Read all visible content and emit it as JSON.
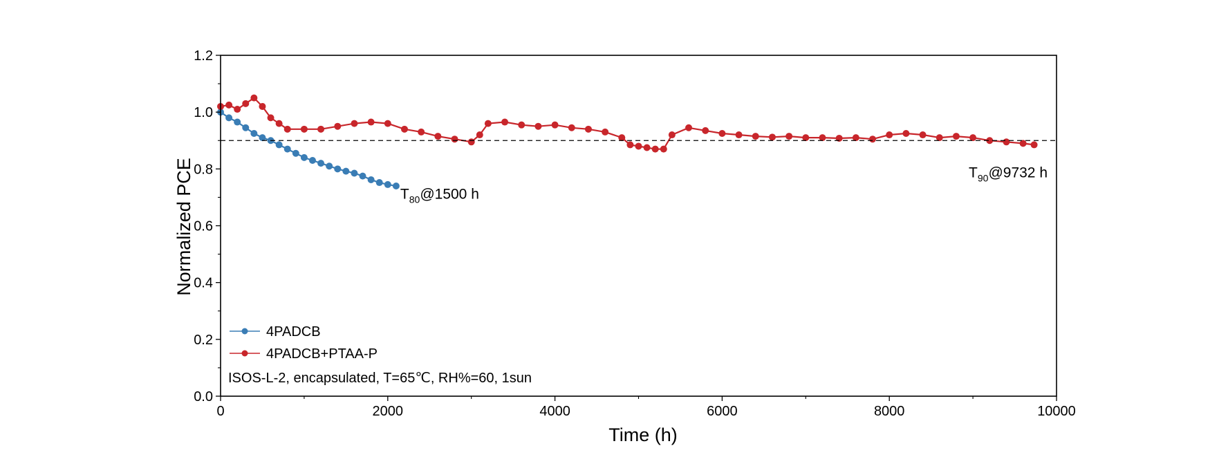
{
  "chart_data": {
    "type": "scatter",
    "title": "",
    "xlabel": "Time (h)",
    "ylabel": "Normalized PCE",
    "xlim": [
      0,
      10000
    ],
    "ylim": [
      0.0,
      1.2
    ],
    "xticks": [
      0,
      2000,
      4000,
      6000,
      8000,
      10000
    ],
    "yticks": [
      0.0,
      0.2,
      0.4,
      0.6,
      0.8,
      1.0,
      1.2
    ],
    "xtick_labels": [
      "0",
      "2000",
      "4000",
      "6000",
      "8000",
      "10000"
    ],
    "ytick_labels": [
      "0.0",
      "0.2",
      "0.4",
      "0.6",
      "0.8",
      "1.0",
      "1.2"
    ],
    "grid": false,
    "legend_position": "bottom-left",
    "condition_text": "ISOS-L-2, encapsulated, T=65℃,  RH%=60, 1sun",
    "reference_line": {
      "y": 0.9,
      "style": "dashed"
    },
    "series": [
      {
        "name": "4PADCB",
        "color": "#3a7db5",
        "x": [
          0,
          100,
          200,
          300,
          400,
          500,
          600,
          700,
          800,
          900,
          1000,
          1100,
          1200,
          1300,
          1400,
          1500,
          1600,
          1700,
          1800,
          1900,
          2000,
          2100
        ],
        "y": [
          1.0,
          0.98,
          0.965,
          0.945,
          0.925,
          0.91,
          0.9,
          0.885,
          0.87,
          0.855,
          0.84,
          0.83,
          0.82,
          0.81,
          0.8,
          0.792,
          0.785,
          0.775,
          0.762,
          0.752,
          0.745,
          0.74
        ]
      },
      {
        "name": "4PADCB+PTAA-P",
        "color": "#c8262b",
        "x": [
          0,
          100,
          200,
          300,
          400,
          500,
          600,
          700,
          800,
          1000,
          1200,
          1400,
          1600,
          1800,
          2000,
          2200,
          2400,
          2600,
          2800,
          3000,
          3100,
          3200,
          3400,
          3600,
          3800,
          4000,
          4200,
          4400,
          4600,
          4800,
          4900,
          5000,
          5100,
          5200,
          5300,
          5400,
          5600,
          5800,
          6000,
          6200,
          6400,
          6600,
          6800,
          7000,
          7200,
          7400,
          7600,
          7800,
          8000,
          8200,
          8400,
          8600,
          8800,
          9000,
          9200,
          9400,
          9600,
          9732
        ],
        "y": [
          1.02,
          1.025,
          1.01,
          1.03,
          1.05,
          1.02,
          0.98,
          0.96,
          0.94,
          0.94,
          0.94,
          0.95,
          0.96,
          0.965,
          0.96,
          0.94,
          0.93,
          0.915,
          0.905,
          0.895,
          0.92,
          0.96,
          0.965,
          0.955,
          0.95,
          0.955,
          0.945,
          0.94,
          0.93,
          0.91,
          0.885,
          0.88,
          0.875,
          0.87,
          0.87,
          0.92,
          0.945,
          0.935,
          0.925,
          0.92,
          0.915,
          0.912,
          0.915,
          0.91,
          0.91,
          0.908,
          0.91,
          0.905,
          0.92,
          0.925,
          0.92,
          0.91,
          0.915,
          0.91,
          0.9,
          0.895,
          0.89,
          0.885
        ]
      }
    ],
    "annotations": [
      {
        "main": "T",
        "sub": "80",
        "rest": "@1500 h",
        "x": 2150,
        "y": 0.695
      },
      {
        "main": "T",
        "sub": "90",
        "rest": "@9732 h",
        "x": 8950,
        "y": 0.77
      }
    ]
  }
}
